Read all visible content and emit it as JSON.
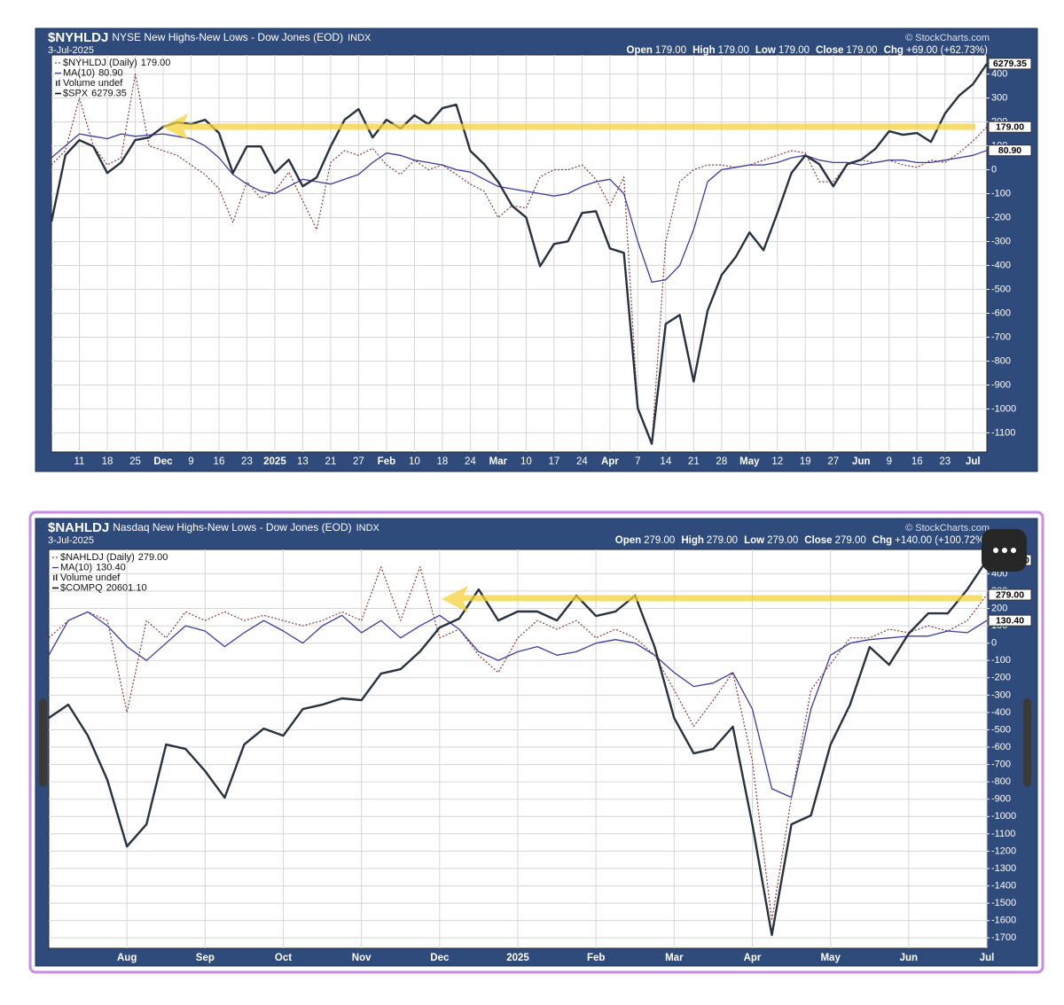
{
  "chart_data": [
    {
      "type": "line",
      "title": "$NYHLDJ",
      "subtitle": "NYSE New Highs-New Lows - Dow Jones (EOD)",
      "exchange": "INDX",
      "date": "3-Jul-2025",
      "watermark": "© StockCharts.com",
      "quote": [
        {
          "label": "Open",
          "value": "179.00"
        },
        {
          "label": "High",
          "value": "179.00"
        },
        {
          "label": "Low",
          "value": "179.00"
        },
        {
          "label": "Close",
          "value": "179.00"
        },
        {
          "label": "Chg",
          "value": "+69.00 (+62.73%)"
        }
      ],
      "grid": true,
      "legend": "upper left",
      "extra_legend": "Volume undef",
      "categories": [
        null,
        null,
        "11",
        null,
        "18",
        null,
        "25",
        null,
        "Dec",
        null,
        "9",
        null,
        "16",
        null,
        "23",
        null,
        "2025",
        null,
        "13",
        null,
        "21",
        null,
        "27",
        null,
        "Feb",
        null,
        "10",
        null,
        "18",
        null,
        "24",
        null,
        "Mar",
        null,
        "10",
        null,
        "17",
        null,
        "24",
        null,
        "Apr",
        null,
        "7",
        null,
        "14",
        null,
        "21",
        null,
        "28",
        null,
        "May",
        null,
        "12",
        null,
        "19",
        null,
        "27",
        null,
        "Jun",
        null,
        "9",
        null,
        "16",
        null,
        "23",
        null,
        "Jul",
        null
      ],
      "ylim": [
        -1180,
        480
      ],
      "yticks": [
        400,
        300,
        200,
        100,
        0,
        -100,
        -200,
        -300,
        -400,
        -500,
        -600,
        -700,
        -800,
        -900,
        -1000,
        -1100
      ],
      "y2lim": [
        4967,
        6309
      ],
      "series": [
        {
          "name": "$NYHLDJ (Daily)",
          "last_label": "179.00",
          "color": "#8a3a3a",
          "style": "dotted",
          "values": [
            20,
            80,
            300,
            100,
            20,
            50,
            400,
            100,
            80,
            60,
            20,
            -20,
            -80,
            -220,
            -50,
            -120,
            -90,
            -10,
            -130,
            -250,
            30,
            80,
            60,
            90,
            20,
            -20,
            40,
            0,
            20,
            -20,
            -60,
            -90,
            -200,
            -150,
            -160,
            -30,
            0,
            0,
            20,
            -40,
            -150,
            -30,
            -1000,
            -1150,
            -300,
            -50,
            0,
            20,
            20,
            10,
            20,
            40,
            60,
            80,
            70,
            -50,
            -50,
            20,
            40,
            30,
            40,
            20,
            10,
            40,
            30,
            70,
            120,
            179
          ]
        },
        {
          "name": "MA(10)",
          "last_label": "80.90",
          "color": "#3c3c9e",
          "style": "solid",
          "values": [
            50,
            100,
            150,
            140,
            130,
            150,
            140,
            145,
            150,
            140,
            130,
            100,
            50,
            -20,
            -60,
            -90,
            -100,
            -70,
            -40,
            -50,
            -60,
            -40,
            -20,
            30,
            70,
            60,
            40,
            30,
            20,
            0,
            -10,
            -40,
            -70,
            -80,
            -90,
            -100,
            -110,
            -100,
            -70,
            -50,
            -40,
            -100,
            -300,
            -470,
            -460,
            -400,
            -250,
            -50,
            0,
            10,
            20,
            20,
            30,
            50,
            60,
            40,
            30,
            30,
            20,
            30,
            40,
            40,
            30,
            30,
            40,
            50,
            60,
            80.9
          ]
        },
        {
          "name": "$SPX",
          "last_label": "6279.35",
          "color": "#27313f",
          "style": "bold",
          "axis": "y2",
          "values": [
            5745,
            5970,
            6021,
            6000,
            5910,
            5946,
            6021,
            6030,
            6066,
            6081,
            6075,
            6090,
            6045,
            5910,
            6000,
            6000,
            5910,
            5955,
            5865,
            5895,
            6000,
            6090,
            6126,
            6030,
            6090,
            6060,
            6105,
            6075,
            6129,
            6141,
            5985,
            5940,
            5880,
            5799,
            5760,
            5595,
            5670,
            5679,
            5775,
            5781,
            5655,
            5640,
            5115,
            4995,
            5400,
            5430,
            5205,
            5445,
            5565,
            5625,
            5709,
            5649,
            5775,
            5910,
            5970,
            5940,
            5865,
            5940,
            5955,
            5991,
            6051,
            6039,
            6045,
            6015,
            6111,
            6171,
            6210,
            6279.35
          ]
        }
      ]
    },
    {
      "type": "line",
      "title": "$NAHLDJ",
      "subtitle": "Nasdaq New Highs-New Lows - Dow Jones (EOD)",
      "exchange": "INDX",
      "date": "3-Jul-2025",
      "watermark": "© StockCharts.com",
      "quote": [
        {
          "label": "Open",
          "value": "279.00"
        },
        {
          "label": "High",
          "value": "279.00"
        },
        {
          "label": "Low",
          "value": "279.00"
        },
        {
          "label": "Close",
          "value": "279.00"
        },
        {
          "label": "Chg",
          "value": "+140.00 (+100.72%)"
        }
      ],
      "grid": true,
      "legend": "upper left",
      "extra_legend": "Volume undef",
      "categories": [
        null,
        null,
        null,
        null,
        "Aug",
        null,
        null,
        null,
        "Sep",
        null,
        null,
        null,
        "Oct",
        null,
        null,
        null,
        "Nov",
        null,
        null,
        null,
        "Dec",
        null,
        null,
        null,
        "2025",
        null,
        null,
        null,
        "Feb",
        null,
        null,
        null,
        "Mar",
        null,
        null,
        null,
        "Apr",
        null,
        null,
        null,
        "May",
        null,
        null,
        null,
        "Jun",
        null,
        null,
        null,
        "Jul"
      ],
      "ylim": [
        -1760,
        540
      ],
      "yticks": [
        400,
        300,
        200,
        100,
        0,
        -100,
        -200,
        -300,
        -400,
        -500,
        -600,
        -700,
        -800,
        -900,
        -1000,
        -1100,
        -1200,
        -1300,
        -1400,
        -1500,
        -1600,
        -1700
      ],
      "y2lim": [
        15180,
        20750
      ],
      "series": [
        {
          "name": "$NAHLDJ (Daily)",
          "last_label": "279.00",
          "color": "#8a3a3a",
          "style": "dotted",
          "values": [
            30,
            130,
            180,
            130,
            -400,
            130,
            30,
            180,
            130,
            180,
            130,
            160,
            130,
            100,
            130,
            180,
            130,
            440,
            130,
            440,
            30,
            80,
            -70,
            -170,
            30,
            130,
            80,
            130,
            30,
            80,
            30,
            -70,
            -270,
            -480,
            -330,
            -170,
            -680,
            -1600,
            -890,
            -270,
            -120,
            30,
            30,
            80,
            60,
            100,
            70,
            130,
            279
          ]
        },
        {
          "name": "MA(10)",
          "last_label": "130.40",
          "color": "#3c3c9e",
          "style": "solid",
          "values": [
            -70,
            130,
            180,
            100,
            -20,
            -100,
            0,
            100,
            70,
            -20,
            60,
            130,
            70,
            0,
            100,
            160,
            60,
            130,
            30,
            100,
            160,
            80,
            -50,
            -100,
            -50,
            -20,
            -70,
            -50,
            0,
            20,
            0,
            -70,
            -170,
            -250,
            -230,
            -170,
            -380,
            -840,
            -890,
            -380,
            -70,
            0,
            20,
            30,
            40,
            40,
            70,
            60,
            130.4
          ]
        },
        {
          "name": "$COMPQ",
          "last_label": "20601.10",
          "color": "#27313f",
          "style": "bold",
          "axis": "y2",
          "values": [
            18397,
            18583,
            18150,
            17531,
            16602,
            16912,
            18026,
            17964,
            17655,
            17283,
            18026,
            18249,
            18150,
            18521,
            18583,
            18670,
            18645,
            19016,
            19078,
            19326,
            19660,
            19784,
            20192,
            19759,
            19883,
            19883,
            19759,
            20106,
            19821,
            19883,
            20106,
            19388,
            18397,
            17902,
            17964,
            18274,
            16912,
            15364,
            16912,
            17036,
            18026,
            18583,
            19388,
            19140,
            19574,
            19858,
            19858,
            20192,
            20601.1
          ]
        }
      ]
    }
  ]
}
